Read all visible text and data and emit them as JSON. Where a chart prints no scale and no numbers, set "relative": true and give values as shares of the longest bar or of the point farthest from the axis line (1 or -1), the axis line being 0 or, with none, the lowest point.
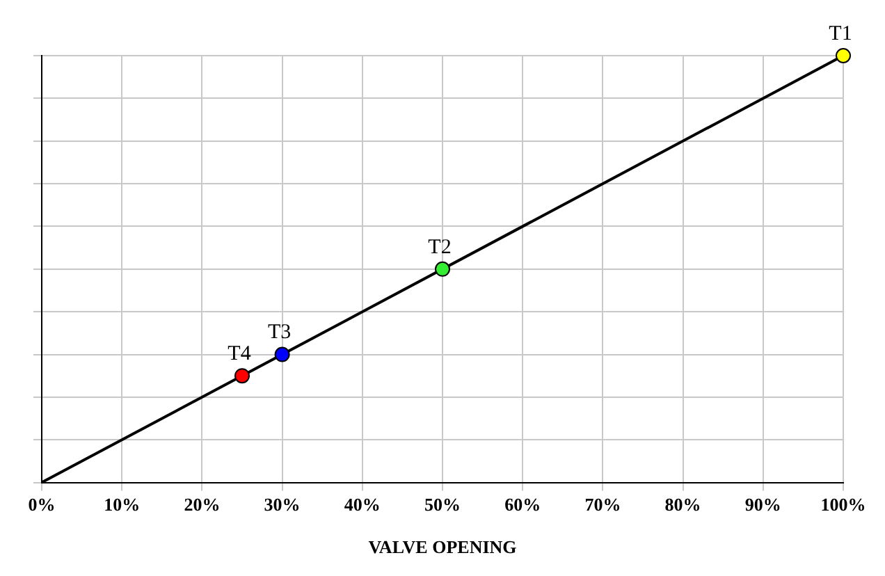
{
  "chart_data": {
    "type": "line",
    "relative": true,
    "xlabel": "VALVE OPENING",
    "xlim": [
      0,
      100
    ],
    "xticks": [
      {
        "value": 0,
        "label": "0%"
      },
      {
        "value": 10,
        "label": "10%"
      },
      {
        "value": 20,
        "label": "20%"
      },
      {
        "value": 30,
        "label": "30%"
      },
      {
        "value": 40,
        "label": "40%"
      },
      {
        "value": 50,
        "label": "50%"
      },
      {
        "value": 60,
        "label": "60%"
      },
      {
        "value": 70,
        "label": "70%"
      },
      {
        "value": 80,
        "label": "80%"
      },
      {
        "value": 90,
        "label": "90%"
      },
      {
        "value": 100,
        "label": "100%"
      }
    ],
    "grid": true,
    "tick_labels": "x",
    "series": [
      {
        "type": "line",
        "color": "#000000",
        "marker": "none",
        "x": [
          0,
          100
        ],
        "values": [
          0,
          1
        ]
      },
      {
        "type": "scatter",
        "name": "T1",
        "color": "#ffff00",
        "marker": "circle",
        "x": [
          100
        ],
        "values": [
          1
        ]
      },
      {
        "type": "scatter",
        "name": "T2",
        "color": "#33ee33",
        "marker": "circle",
        "x": [
          50
        ],
        "values": [
          0.5
        ]
      },
      {
        "type": "scatter",
        "name": "T3",
        "color": "#0000ff",
        "marker": "circle",
        "x": [
          30
        ],
        "values": [
          0.3
        ]
      },
      {
        "type": "scatter",
        "name": "T4",
        "color": "#ff0000",
        "marker": "circle",
        "x": [
          25
        ],
        "values": [
          0.25
        ]
      }
    ]
  }
}
